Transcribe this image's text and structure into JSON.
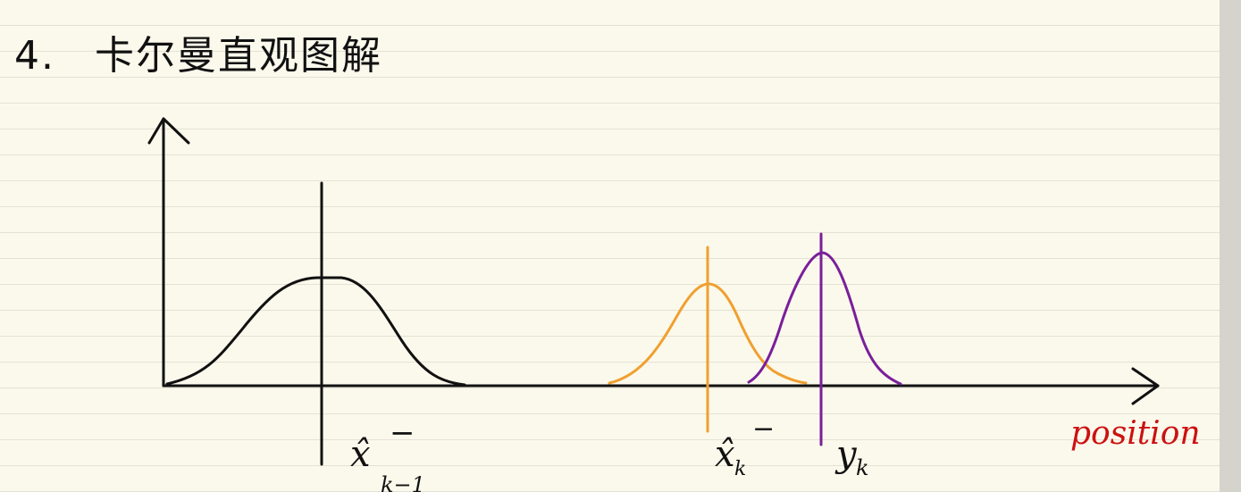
{
  "title": {
    "number": "4.",
    "text": "卡尔曼直观图解"
  },
  "diagram": {
    "x_axis_label": "position",
    "curves": [
      {
        "name": "prior-estimate",
        "label_main": "x̂",
        "label_sup": "−",
        "label_sub": "k−1",
        "color": "#111111",
        "mean": 0.16,
        "shape": "flat-top"
      },
      {
        "name": "predicted-estimate",
        "label_main": "x̂",
        "label_sup": "−",
        "label_sub": "k",
        "color": "#f0a030",
        "mean": 0.55,
        "shape": "bell"
      },
      {
        "name": "measurement",
        "label_main": "y",
        "label_sup": "",
        "label_sub": "k",
        "color": "#7a1f9a",
        "mean": 0.66,
        "shape": "narrow-bell"
      }
    ],
    "colors": {
      "ink": "#111111",
      "axis_label": "#cc1111",
      "paper": "#fbf9ec",
      "ruling": "#e4e2d4"
    }
  }
}
